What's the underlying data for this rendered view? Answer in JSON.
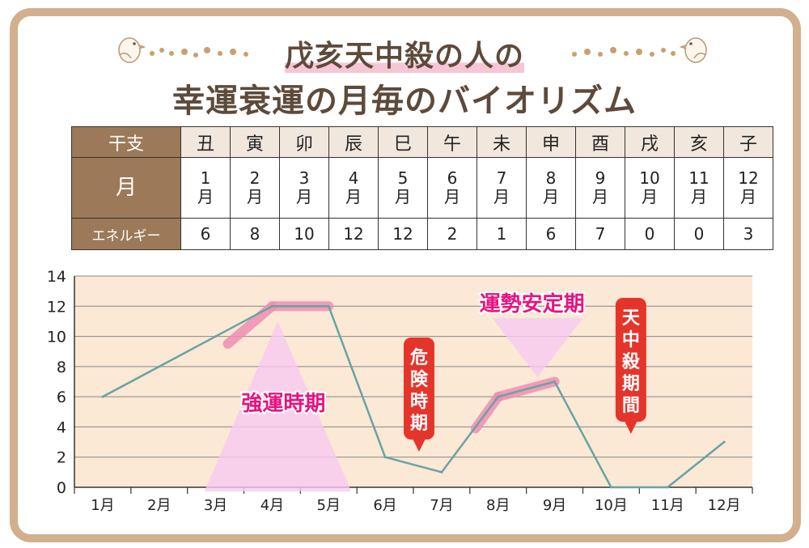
{
  "title": {
    "line1": "戊亥天中殺の人の",
    "line2": "幸運衰運の月毎のバイオリズム"
  },
  "table": {
    "header_label": "干支",
    "month_label": "月",
    "energy_label": "エネルギー",
    "eto": [
      "丑",
      "寅",
      "卯",
      "辰",
      "巳",
      "午",
      "未",
      "申",
      "酉",
      "戌",
      "亥",
      "子"
    ],
    "months": [
      [
        "1",
        "月"
      ],
      [
        "2",
        "月"
      ],
      [
        "3",
        "月"
      ],
      [
        "4",
        "月"
      ],
      [
        "5",
        "月"
      ],
      [
        "6",
        "月"
      ],
      [
        "7",
        "月"
      ],
      [
        "8",
        "月"
      ],
      [
        "9",
        "月"
      ],
      [
        "10",
        "月"
      ],
      [
        "11",
        "月"
      ],
      [
        "12",
        "月"
      ]
    ],
    "energy": [
      "6",
      "8",
      "10",
      "12",
      "12",
      "2",
      "1",
      "6",
      "7",
      "0",
      "0",
      "3"
    ]
  },
  "chart_data": {
    "type": "line",
    "categories": [
      "1月",
      "2月",
      "3月",
      "4月",
      "5月",
      "6月",
      "7月",
      "8月",
      "9月",
      "10月",
      "11月",
      "12月"
    ],
    "values": [
      6,
      8,
      10,
      12,
      12,
      2,
      1,
      6,
      7,
      0,
      0,
      3
    ],
    "ylim": [
      0,
      14
    ],
    "yticks": [
      "0",
      "2",
      "4",
      "6",
      "8",
      "10",
      "12",
      "14"
    ],
    "grid": true,
    "annotations": {
      "strong": "強運時期",
      "stable": "運勢安定期",
      "danger": "危険時期",
      "tenchusatsu": "天中殺期間"
    }
  },
  "colors": {
    "line": "#6aa3a3",
    "plot_bg": "#fbe8d5",
    "frame": "#d2b08d",
    "table_head": "#9c7a59",
    "highlight": "#ef8fb3",
    "callout": "#e5352b",
    "magenta": "#e8137f"
  }
}
